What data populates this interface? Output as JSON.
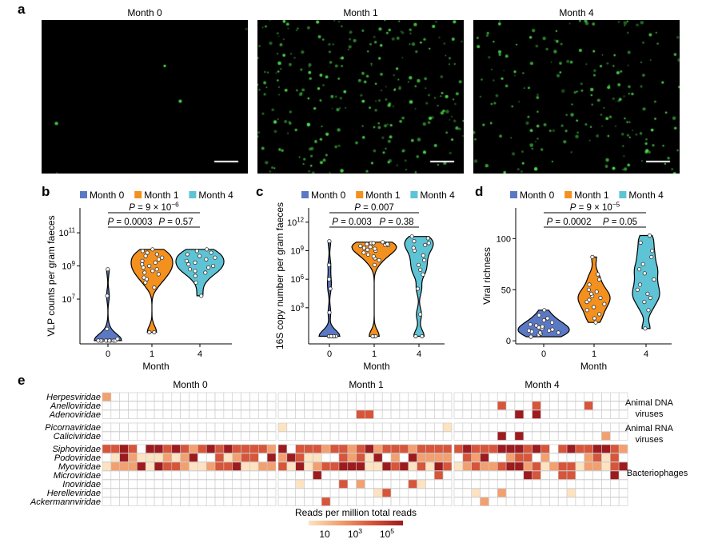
{
  "panel_labels": {
    "a": "a",
    "b": "b",
    "c": "c",
    "d": "d",
    "e": "e"
  },
  "micrographs": {
    "titles": [
      "Month 0",
      "Month 1",
      "Month 4"
    ],
    "spot_color": "#4ddc4d",
    "spot_density": [
      0.01,
      1,
      0.75
    ]
  },
  "colors": {
    "month0": "#5b78c5",
    "month1": "#f3901e",
    "month4": "#5ec3d4"
  },
  "legend": [
    "Month 0",
    "Month 1",
    "Month 4"
  ],
  "chart_data": [
    {
      "type": "violin",
      "panel": "b",
      "ylabel": "VLP counts per gram faeces",
      "xlabel": "Month",
      "categories": [
        "0",
        "1",
        "4"
      ],
      "scale": "log10",
      "ylim_log10": [
        4.3,
        12.5
      ],
      "yticks": [
        {
          "log": 7,
          "label": "10^7"
        },
        {
          "log": 9,
          "label": "10^9"
        },
        {
          "log": 11,
          "label": "10^11"
        }
      ],
      "brackets": [
        {
          "from": 0,
          "to": 2,
          "text": "P = 9 × 10^−6"
        },
        {
          "from": 0,
          "to": 1,
          "text": "P = 0.0003"
        },
        {
          "from": 1,
          "to": 2,
          "text": "P = 0.57"
        }
      ],
      "series": [
        {
          "name": "Month 0",
          "values": [
            4.5,
            4.5,
            4.5,
            4.5,
            4.5,
            4.5,
            4.5,
            4.5,
            4.5,
            4.6,
            5.2,
            7.2,
            8.8
          ]
        },
        {
          "name": "Month 1",
          "values": [
            5.0,
            5.0,
            7.7,
            8.0,
            8.2,
            8.3,
            8.5,
            8.6,
            8.7,
            8.8,
            8.9,
            9.0,
            9.1,
            9.2,
            9.3,
            9.4,
            9.5,
            9.6,
            9.7,
            9.8,
            9.9,
            10.0
          ]
        },
        {
          "name": "Month 4",
          "values": [
            7.2,
            8.0,
            8.4,
            8.6,
            8.7,
            8.8,
            8.9,
            9.0,
            9.1,
            9.2,
            9.3,
            9.4,
            9.5,
            9.6,
            9.7,
            9.8,
            9.9,
            10.0
          ]
        }
      ]
    },
    {
      "type": "violin",
      "panel": "c",
      "ylabel": "16S copy number per gram faeces",
      "xlabel": "Month",
      "categories": [
        "0",
        "1",
        "4"
      ],
      "scale": "log10",
      "ylim_log10": [
        -0.8,
        13.5
      ],
      "yticks": [
        {
          "log": 3,
          "label": "10^3"
        },
        {
          "log": 6,
          "label": "10^6"
        },
        {
          "log": 9,
          "label": "10^9"
        },
        {
          "log": 12,
          "label": "10^12"
        }
      ],
      "brackets": [
        {
          "from": 0,
          "to": 2,
          "text": "P = 0.007"
        },
        {
          "from": 0,
          "to": 1,
          "text": "P = 0.003"
        },
        {
          "from": 1,
          "to": 2,
          "text": "P = 0.38"
        }
      ],
      "series": [
        {
          "name": "Month 0",
          "values": [
            0,
            0,
            0,
            0,
            0,
            0,
            0,
            0,
            2.5,
            5.0,
            6.0,
            7.5,
            10.0
          ]
        },
        {
          "name": "Month 1",
          "values": [
            0,
            0,
            0,
            7.5,
            8.0,
            8.2,
            8.4,
            8.6,
            8.8,
            9.0,
            9.1,
            9.2,
            9.3,
            9.4,
            9.5,
            9.6,
            9.6,
            9.7,
            9.7,
            9.8,
            9.8,
            9.9
          ]
        },
        {
          "name": "Month 4",
          "values": [
            0,
            0,
            2.3,
            5.0,
            6.5,
            7.0,
            7.5,
            8.0,
            8.5,
            9.0,
            9.3,
            9.6,
            9.8,
            10.0,
            10.3,
            10.5
          ]
        }
      ]
    },
    {
      "type": "violin",
      "panel": "d",
      "ylabel": "Viral richness",
      "xlabel": "Month",
      "categories": [
        "0",
        "1",
        "4"
      ],
      "scale": "linear",
      "ylim": [
        -3,
        130
      ],
      "yticks": [
        {
          "value": 0,
          "label": "0"
        },
        {
          "value": 50,
          "label": "50"
        },
        {
          "value": 100,
          "label": "100"
        }
      ],
      "brackets": [
        {
          "from": 0,
          "to": 2,
          "text": "P = 9 × 10^−5"
        },
        {
          "from": 0,
          "to": 1,
          "text": "P = 0.0002"
        },
        {
          "from": 1,
          "to": 2,
          "text": "P = 0.05"
        }
      ],
      "series": [
        {
          "name": "Month 0",
          "values": [
            4,
            5,
            6,
            7,
            8,
            8,
            9,
            10,
            10,
            11,
            12,
            13,
            14,
            15,
            16,
            18,
            20,
            22,
            25,
            30
          ]
        },
        {
          "name": "Month 1",
          "values": [
            18,
            22,
            26,
            30,
            33,
            36,
            38,
            40,
            42,
            44,
            46,
            48,
            50,
            55,
            60,
            65,
            82
          ]
        },
        {
          "name": "Month 4",
          "values": [
            12,
            30,
            38,
            42,
            46,
            50,
            55,
            60,
            66,
            70,
            75,
            82,
            88,
            96,
            103
          ]
        }
      ]
    },
    {
      "type": "heatmap",
      "panel": "e",
      "group_titles": [
        "Month 0",
        "Month 1",
        "Month 4"
      ],
      "group_columns": [
        20,
        20,
        20
      ],
      "rows": [
        {
          "label": "Herpesviridae",
          "block": 0
        },
        {
          "label": "Anelloviridae",
          "block": 0
        },
        {
          "label": "Adenoviridae",
          "block": 0
        },
        {
          "label": "Picornaviridae",
          "block": 1
        },
        {
          "label": "Caliciviridae",
          "block": 1
        },
        {
          "label": "Siphoviridae",
          "block": 2
        },
        {
          "label": "Podoviridae",
          "block": 2
        },
        {
          "label": "Myoviridae",
          "block": 2
        },
        {
          "label": "Microviridae",
          "block": 2
        },
        {
          "label": "Inoviridae",
          "block": 2
        },
        {
          "label": "Herelleviridae",
          "block": 2
        },
        {
          "label": "Ackermannviridae",
          "block": 2
        }
      ],
      "block_labels": [
        [
          "Animal DNA",
          "viruses"
        ],
        [
          "Animal RNA",
          "viruses"
        ],
        [
          "Bacteriophages"
        ]
      ],
      "color_scale": {
        "title": "Reads per million total reads",
        "ticks": [
          "10",
          "10^3",
          "10^5"
        ],
        "colors": [
          "#fde3c1",
          "#f2a070",
          "#d7553a",
          "#9c1b1f"
        ]
      },
      "values": [
        "1000000000000000000000000000000000000000000000000000000000000",
        "000000000000000000000000000000000000000000000000000000000000",
        "000000000000000000000000000000000000000000000000000000000000",
        "000000000000000000000000000000000000000000000000000000000000",
        "000000000000000000000000000000000000000000000000000000000000",
        "000000000000000000000000000000000000000000000000000000000000",
        "000000000000000000000000000000000000000000000000000000000000",
        "000000000000000000000000000000000000000000000000000000000000",
        "000000000000000000000000000000000000000000000000000000000000",
        "000000000000000000000000000000000000000000000000000000000000",
        "000000000000000000000000000000000000000000000000000000000000",
        "000000000000000000000000000000000000000000000000000000000000"
      ],
      "cells": [
        [
          [
            0,
            1
          ]
        ],
        [
          [
            0,
            0
          ]
        ],
        [
          [
            1,
            0
          ]
        ],
        [
          []
        ],
        [
          []
        ]
      ],
      "matrix": [
        "2000000000000000000000000000000000000000000000000000000000000",
        "000000000000000000000000000000000000000000000300030000030000",
        "000000000000000000000000000003300000000000000004040000000000",
        "000000000000000000001000000000000000000100000000000000000000",
        "000000000000000000000000000000000000000000000404000000000200"
      ]
    }
  ]
}
